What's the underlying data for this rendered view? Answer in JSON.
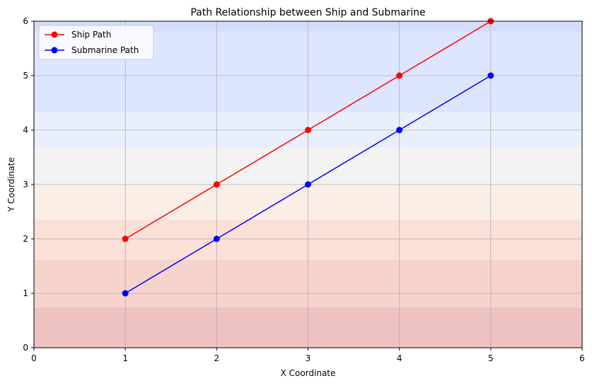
{
  "chart_data": {
    "type": "line",
    "title": "Path Relationship between Ship and Submarine",
    "xlabel": "X Coordinate",
    "ylabel": "Y Coordinate",
    "xlim": [
      0,
      6
    ],
    "ylim": [
      0,
      6
    ],
    "xticks": [
      0,
      1,
      2,
      3,
      4,
      5,
      6
    ],
    "yticks": [
      0,
      1,
      2,
      3,
      4,
      5,
      6
    ],
    "grid": true,
    "legend_position": "top-left",
    "series": [
      {
        "name": "Ship Path",
        "color": "#ff0000",
        "marker": "circle",
        "x": [
          1,
          2,
          3,
          4,
          5
        ],
        "y": [
          2,
          3,
          4,
          5,
          6
        ]
      },
      {
        "name": "Submarine Path",
        "color": "#0000ff",
        "marker": "circle",
        "x": [
          1,
          2,
          3,
          4,
          5
        ],
        "y": [
          1,
          2,
          3,
          4,
          5
        ]
      }
    ],
    "background_bands": [
      {
        "from": 0,
        "to": 0.74,
        "color": "#efc2c2"
      },
      {
        "from": 0.74,
        "to": 1.61,
        "color": "#f6d3cc"
      },
      {
        "from": 1.61,
        "to": 2.35,
        "color": "#fbe0d8"
      },
      {
        "from": 2.35,
        "to": 3.0,
        "color": "#faeee7"
      },
      {
        "from": 3.0,
        "to": 3.68,
        "color": "#f3f3f3"
      },
      {
        "from": 3.68,
        "to": 4.32,
        "color": "#e9effc"
      },
      {
        "from": 4.32,
        "to": 5.81,
        "color": "#dde6fe"
      },
      {
        "from": 5.81,
        "to": 6.0,
        "color": "#d3ddfb"
      }
    ]
  }
}
